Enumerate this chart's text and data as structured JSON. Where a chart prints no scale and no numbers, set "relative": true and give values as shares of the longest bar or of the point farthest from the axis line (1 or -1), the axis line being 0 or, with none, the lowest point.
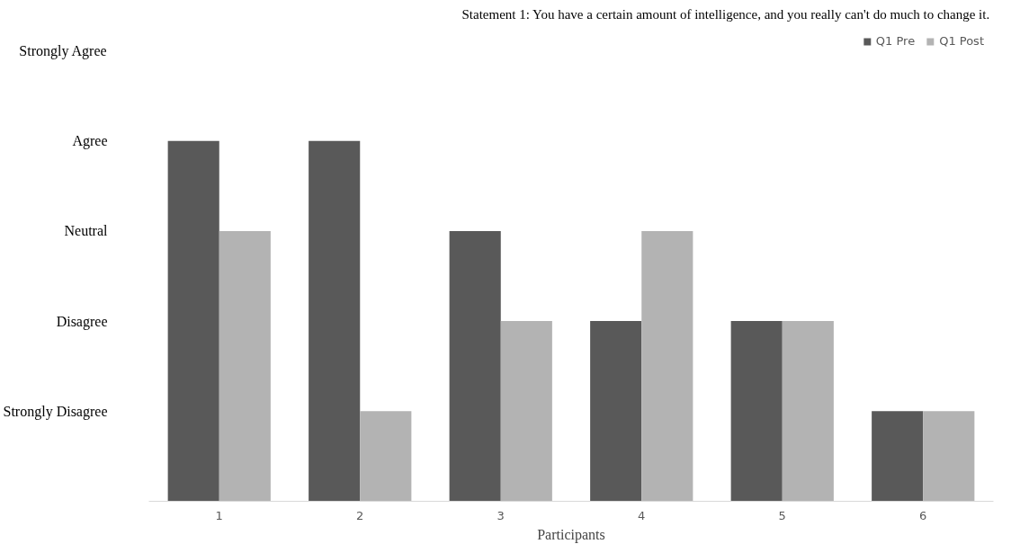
{
  "chart_data": {
    "type": "bar",
    "title": "Statement 1:  You have a certain amount of intelligence, and you really can't do much to change it.",
    "xlabel": "Participants",
    "categories": [
      "1",
      "2",
      "3",
      "4",
      "5",
      "6"
    ],
    "series": [
      {
        "name": "Q1 Pre",
        "color": "#595959",
        "values": [
          1,
          1,
          0.75,
          0.5,
          0.5,
          0.25
        ]
      },
      {
        "name": "Q1 Post",
        "color": "#b3b3b3",
        "values": [
          0.75,
          0.25,
          0.5,
          0.75,
          0.5,
          0.25
        ]
      }
    ],
    "relative": true,
    "annotations": [
      "Strongly Agree",
      "Agree",
      "Neutral",
      "Disagree",
      "Strongly Disagree"
    ],
    "grid": false,
    "legend": "top right"
  }
}
